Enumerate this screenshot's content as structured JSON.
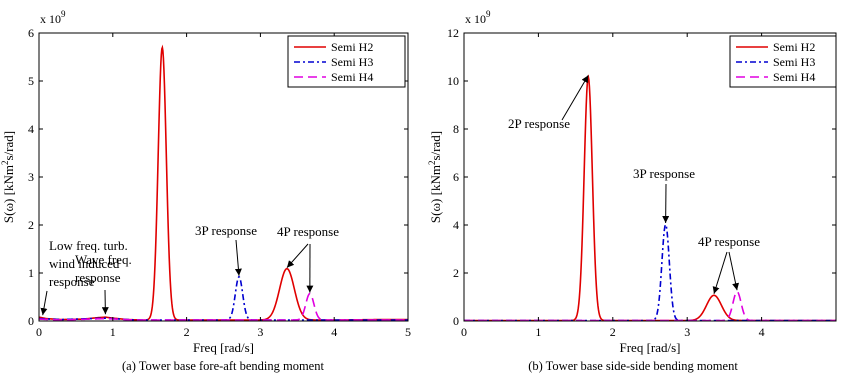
{
  "chart_data": [
    {
      "type": "line",
      "caption": "(a) Tower base fore-aft bending moment",
      "xlabel": "Freq [rad/s]",
      "ylabel_prefix": "S(",
      "ylabel_omega": "ω",
      "ylabel_rest": ") [kNm",
      "ylabel_sup": "2",
      "ylabel_tail": "s/rad]",
      "multiplier_base": "x 10",
      "multiplier_exp": "9",
      "xlim": [
        0,
        5
      ],
      "ylim": [
        0,
        6
      ],
      "xticks": [
        0,
        1,
        2,
        3,
        4,
        5
      ],
      "yticks": [
        0,
        1,
        2,
        3,
        4,
        5,
        6
      ],
      "legend_position": "top-right",
      "series": [
        {
          "name": "Semi H2",
          "color": "#e00000",
          "dash": "solid",
          "baseline": [
            [
              0.0,
              0.08
            ],
            [
              0.1,
              0.05
            ],
            [
              0.3,
              0.03
            ],
            [
              0.6,
              0.04
            ],
            [
              0.8,
              0.07
            ],
            [
              0.9,
              0.08
            ],
            [
              1.0,
              0.06
            ],
            [
              1.2,
              0.03
            ],
            [
              1.4,
              0.02
            ],
            [
              2.0,
              0.02
            ],
            [
              3.0,
              0.02
            ],
            [
              4.0,
              0.02
            ],
            [
              4.6,
              0.03
            ],
            [
              5.0,
              0.03
            ]
          ],
          "peaks": [
            {
              "center": 1.67,
              "height": 5.68,
              "width": 0.055
            },
            {
              "center": 3.36,
              "height": 1.07,
              "width": 0.1
            }
          ]
        },
        {
          "name": "Semi H3",
          "color": "#0000d0",
          "dash": "6,3,2,3",
          "baseline": [
            [
              0.0,
              0.05
            ],
            [
              0.3,
              0.03
            ],
            [
              0.9,
              0.06
            ],
            [
              1.3,
              0.02
            ],
            [
              5.0,
              0.02
            ]
          ],
          "peaks": [
            {
              "center": 2.71,
              "height": 0.9,
              "width": 0.05
            }
          ]
        },
        {
          "name": "Semi H4",
          "color": "#e000e0",
          "dash": "9,5",
          "baseline": [
            [
              0.0,
              0.04
            ],
            [
              0.3,
              0.02
            ],
            [
              0.9,
              0.05
            ],
            [
              1.3,
              0.02
            ],
            [
              5.0,
              0.02
            ]
          ],
          "peaks": [
            {
              "center": 3.67,
              "height": 0.55,
              "width": 0.055
            }
          ]
        }
      ],
      "annotations": [
        {
          "lines": [
            "Low freq. turb.",
            "wind induced",
            "response"
          ]
        },
        {
          "lines": [
            "Wave freq.",
            "response"
          ]
        },
        {
          "lines": [
            "3P response"
          ]
        },
        {
          "lines": [
            "4P response"
          ]
        }
      ],
      "arrow_targets": [
        [
          0.05,
          0.08
        ],
        [
          0.9,
          0.1
        ],
        [
          2.71,
          0.9
        ],
        [
          3.36,
          1.07
        ],
        [
          3.67,
          0.55
        ]
      ]
    },
    {
      "type": "line",
      "caption": "(b) Tower base side-side bending moment",
      "xlabel": "Freq [rad/s]",
      "ylabel_prefix": "S(",
      "ylabel_omega": "ω",
      "ylabel_rest": ") [kNm",
      "ylabel_sup": "2",
      "ylabel_tail": "s/rad]",
      "multiplier_base": "x 10",
      "multiplier_exp": "9",
      "xlim": [
        0,
        5
      ],
      "ylim": [
        0,
        12
      ],
      "xticks": [
        0,
        1,
        2,
        3,
        4
      ],
      "yticks": [
        0,
        2,
        4,
        6,
        8,
        10,
        12
      ],
      "legend_position": "top-right",
      "series": [
        {
          "name": "Semi H2",
          "color": "#e00000",
          "dash": "solid",
          "baseline": [
            [
              0.0,
              0.02
            ],
            [
              5.0,
              0.02
            ]
          ],
          "peaks": [
            {
              "center": 1.67,
              "height": 10.15,
              "width": 0.055
            },
            {
              "center": 3.36,
              "height": 1.05,
              "width": 0.1
            }
          ]
        },
        {
          "name": "Semi H3",
          "color": "#0000d0",
          "dash": "6,3,2,3",
          "baseline": [
            [
              0.0,
              0.02
            ],
            [
              5.0,
              0.02
            ]
          ],
          "peaks": [
            {
              "center": 2.71,
              "height": 4.0,
              "width": 0.05
            }
          ]
        },
        {
          "name": "Semi H4",
          "color": "#e000e0",
          "dash": "9,5",
          "baseline": [
            [
              0.0,
              0.02
            ],
            [
              5.0,
              0.02
            ]
          ],
          "peaks": [
            {
              "center": 3.67,
              "height": 1.2,
              "width": 0.055
            }
          ]
        }
      ],
      "annotations": [
        {
          "lines": [
            "2P response"
          ]
        },
        {
          "lines": [
            "3P response"
          ]
        },
        {
          "lines": [
            "4P response"
          ]
        }
      ],
      "arrow_targets": [
        [
          1.67,
          10.15
        ],
        [
          2.71,
          4.0
        ],
        [
          3.36,
          1.05
        ],
        [
          3.67,
          1.2
        ]
      ]
    }
  ]
}
